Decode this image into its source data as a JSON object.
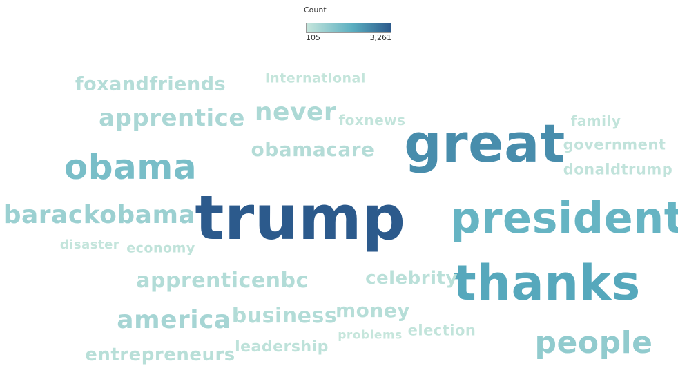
{
  "chart_data": {
    "type": "wordcloud",
    "legend": {
      "title": "Count",
      "min_label": "105",
      "max_label": "3,261",
      "min": 105,
      "max": 3261,
      "color_low": "#c6e6dc",
      "color_high": "#2c5a8c"
    },
    "words": [
      {
        "text": "trump",
        "value": 3261
      },
      {
        "text": "great",
        "value": 2400
      },
      {
        "text": "thanks",
        "value": 1950
      },
      {
        "text": "president",
        "value": 1650
      },
      {
        "text": "obama",
        "value": 1350
      },
      {
        "text": "people",
        "value": 950
      },
      {
        "text": "barackobama",
        "value": 800
      },
      {
        "text": "america",
        "value": 620
      },
      {
        "text": "apprentice",
        "value": 560
      },
      {
        "text": "never",
        "value": 520
      },
      {
        "text": "apprenticenbc",
        "value": 430
      },
      {
        "text": "business",
        "value": 430
      },
      {
        "text": "obamacare",
        "value": 400
      },
      {
        "text": "foxandfriends",
        "value": 380
      },
      {
        "text": "money",
        "value": 360
      },
      {
        "text": "entrepreneurs",
        "value": 330
      },
      {
        "text": "celebrity",
        "value": 300
      },
      {
        "text": "leadership",
        "value": 240
      },
      {
        "text": "economy",
        "value": 200
      },
      {
        "text": "government",
        "value": 190
      },
      {
        "text": "donaldtrump",
        "value": 190
      },
      {
        "text": "foxnews",
        "value": 170
      },
      {
        "text": "family",
        "value": 170
      },
      {
        "text": "election",
        "value": 165
      },
      {
        "text": "international",
        "value": 140
      },
      {
        "text": "disaster",
        "value": 130
      },
      {
        "text": "problems",
        "value": 110
      }
    ]
  }
}
